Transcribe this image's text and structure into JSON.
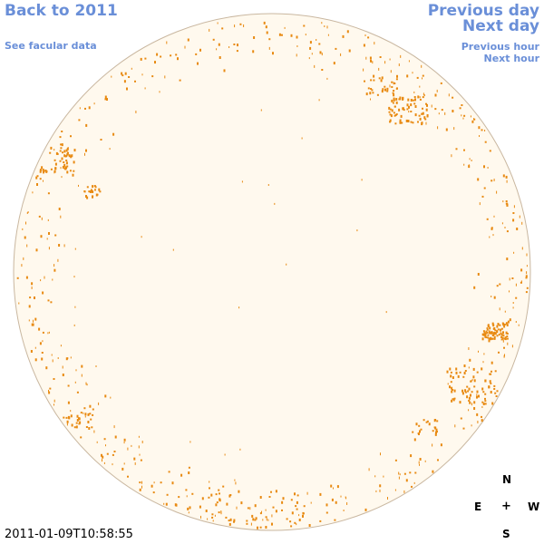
{
  "nav": {
    "back_label": "Back to 2011",
    "facular_label": "See facular data",
    "prev_day_label": "Previous day",
    "next_day_label": "Next day",
    "prev_hour_label": "Previous hour",
    "next_hour_label": "Next hour"
  },
  "compass": {
    "north": "N",
    "east": "E",
    "center": "+",
    "west": "W",
    "south": "S"
  },
  "timestamp": "2011-01-09T10:58:55",
  "colors": {
    "link": "#6a8fd8",
    "disk_fill": "#fff9ee",
    "disk_edge": "#c9b7a0",
    "facula": "#e88a12"
  }
}
